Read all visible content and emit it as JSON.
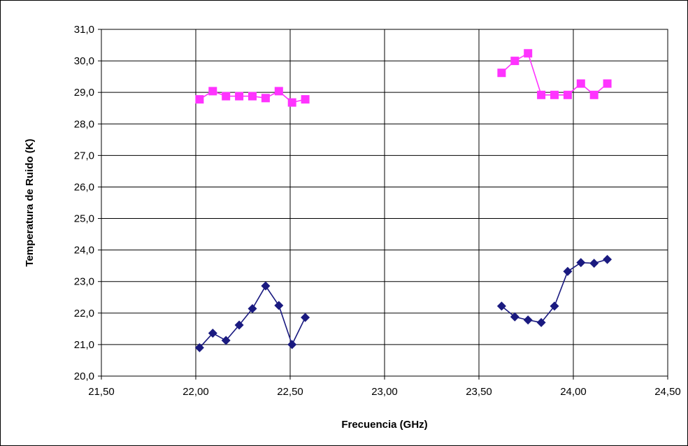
{
  "chart_data": {
    "type": "line",
    "title": "",
    "xlabel": "Frecuencia (GHz)",
    "ylabel": "Temperatura de Ruido (K)",
    "xlim": [
      21.5,
      24.5
    ],
    "ylim": [
      20.0,
      31.0
    ],
    "x_ticks": [
      "21,50",
      "22,00",
      "22,50",
      "23,00",
      "23,50",
      "24,00",
      "24,50"
    ],
    "x_tick_values": [
      21.5,
      22.0,
      22.5,
      23.0,
      23.5,
      24.0,
      24.5
    ],
    "y_ticks": [
      "20,0",
      "21,0",
      "22,0",
      "23,0",
      "24,0",
      "25,0",
      "26,0",
      "27,0",
      "28,0",
      "29,0",
      "30,0",
      "31,0"
    ],
    "y_tick_values": [
      20,
      21,
      22,
      23,
      24,
      25,
      26,
      27,
      28,
      29,
      30,
      31
    ],
    "grid": true,
    "legend": "none",
    "series": [
      {
        "color": "#1a1a80",
        "marker": "diamond",
        "segments": [
          [
            [
              22.02,
              20.9
            ],
            [
              22.09,
              21.36
            ],
            [
              22.16,
              21.13
            ],
            [
              22.23,
              21.62
            ],
            [
              22.3,
              22.14
            ],
            [
              22.37,
              22.86
            ],
            [
              22.44,
              22.24
            ],
            [
              22.51,
              21.0
            ],
            [
              22.58,
              21.86
            ]
          ],
          [
            [
              23.62,
              22.22
            ],
            [
              23.69,
              21.88
            ],
            [
              23.76,
              21.78
            ],
            [
              23.83,
              21.7
            ],
            [
              23.9,
              22.22
            ],
            [
              23.97,
              23.32
            ],
            [
              24.04,
              23.6
            ],
            [
              24.11,
              23.58
            ],
            [
              24.18,
              23.7
            ]
          ]
        ]
      },
      {
        "color": "#ff33ff",
        "marker": "square",
        "segments": [
          [
            [
              22.02,
              28.78
            ],
            [
              22.09,
              29.04
            ],
            [
              22.16,
              28.88
            ],
            [
              22.23,
              28.88
            ],
            [
              22.3,
              28.88
            ],
            [
              22.37,
              28.82
            ],
            [
              22.44,
              29.04
            ],
            [
              22.51,
              28.68
            ],
            [
              22.58,
              28.78
            ]
          ],
          [
            [
              23.62,
              29.62
            ],
            [
              23.69,
              30.0
            ],
            [
              23.76,
              30.24
            ],
            [
              23.83,
              28.92
            ],
            [
              23.9,
              28.92
            ],
            [
              23.97,
              28.92
            ],
            [
              24.04,
              29.28
            ],
            [
              24.11,
              28.92
            ],
            [
              24.18,
              29.28
            ]
          ]
        ]
      }
    ]
  }
}
